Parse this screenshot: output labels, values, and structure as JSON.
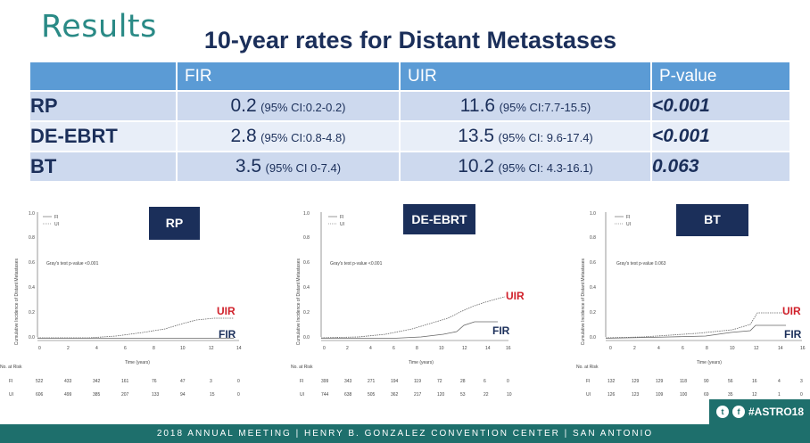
{
  "title": "Results",
  "subtitle": "10-year rates for Distant Metastases",
  "table": {
    "headers": [
      "",
      "FIR",
      "UIR",
      "P-value"
    ],
    "rows": [
      {
        "label": "RP",
        "fir_val": "0.2",
        "fir_ci": "(95% CI:0.2-0.2)",
        "uir_val": "11.6",
        "uir_ci": "(95% CI:7.7-15.5)",
        "p": "<0.001"
      },
      {
        "label": "DE-EBRT",
        "fir_val": "2.8",
        "fir_ci": "(95% CI:0.8-4.8)",
        "uir_val": "13.5",
        "uir_ci": "(95% CI: 9.6-17.4)",
        "p": "<0.001"
      },
      {
        "label": "BT",
        "fir_val": "3.5",
        "fir_ci": "(95% CI 0-7.4)",
        "uir_val": "10.2",
        "uir_ci": "(95% CI: 4.3-16.1)",
        "p": "0.063"
      }
    ]
  },
  "plots": [
    {
      "tag": "RP",
      "gray": "Gray's test p-value <0.001",
      "ylabel": "Cumulative Incidence of Distant Metastases",
      "xlabel": "Time (years)",
      "uir": "UIR",
      "fir": "FIR",
      "legend": [
        "FI",
        "UI"
      ],
      "risk_title": "No. at Risk",
      "risk_fi": [
        "522",
        "433",
        "342",
        "161",
        "76",
        "47",
        "3",
        "0"
      ],
      "risk_ui": [
        "606",
        "499",
        "385",
        "207",
        "133",
        "94",
        "15",
        "0"
      ],
      "xticks": [
        "0",
        "2",
        "4",
        "6",
        "8",
        "10",
        "12",
        "14"
      ],
      "yticks": [
        "0.0",
        "0.2",
        "0.4",
        "0.6",
        "0.8",
        "1.0"
      ]
    },
    {
      "tag": "DE-EBRT",
      "gray": "Gray's test p-value <0.001",
      "ylabel": "Cumulative Incidence of Distant Metastases",
      "xlabel": "Time (years)",
      "uir": "UIR",
      "fir": "FIR",
      "legend": [
        "FI",
        "UI"
      ],
      "risk_title": "No. at Risk",
      "risk_fi": [
        "399",
        "343",
        "271",
        "194",
        "119",
        "72",
        "28",
        "6",
        "0"
      ],
      "risk_ui": [
        "744",
        "638",
        "505",
        "362",
        "217",
        "120",
        "53",
        "22",
        "10"
      ],
      "xticks": [
        "0",
        "2",
        "4",
        "6",
        "8",
        "10",
        "12",
        "14",
        "16"
      ],
      "yticks": [
        "0.0",
        "0.2",
        "0.4",
        "0.6",
        "0.8",
        "1.0"
      ]
    },
    {
      "tag": "BT",
      "gray": "Gray's test p-value 0.063",
      "ylabel": "Cumulative Incidence of Distant Metastases",
      "xlabel": "Time (years)",
      "uir": "UIR",
      "fir": "FIR",
      "legend": [
        "FI",
        "UI"
      ],
      "risk_title": "No. at Risk",
      "risk_fi": [
        "132",
        "129",
        "129",
        "118",
        "90",
        "56",
        "16",
        "4",
        "3"
      ],
      "risk_ui": [
        "126",
        "123",
        "109",
        "100",
        "69",
        "35",
        "12",
        "1",
        "0"
      ],
      "xticks": [
        "0",
        "2",
        "4",
        "6",
        "8",
        "10",
        "12",
        "14",
        "16"
      ],
      "yticks": [
        "0.0",
        "0.2",
        "0.4",
        "0.6",
        "0.8",
        "1.0"
      ]
    }
  ],
  "footer": "2018 ANNUAL MEETING  |  HENRY B. GONZALEZ CONVENTION CENTER  |  SAN ANTONIO",
  "social": {
    "hashtag": "#ASTRO18",
    "icon1": "twitter-icon",
    "icon2": "facebook-icon"
  },
  "colors": {
    "teal": "#2a8a86",
    "navy": "#1b2f5a",
    "header": "#5b9bd5",
    "uir": "#d0202a"
  }
}
